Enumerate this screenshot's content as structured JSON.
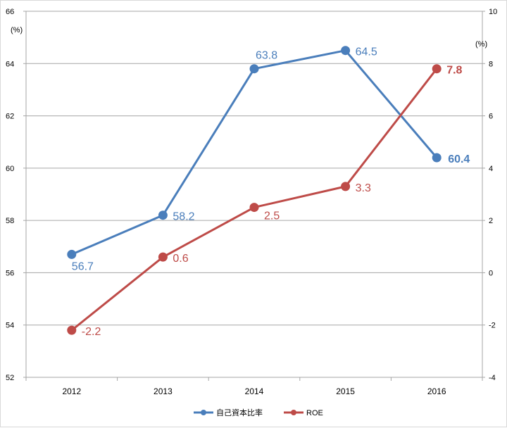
{
  "chart_data": {
    "type": "line",
    "categories": [
      "2012",
      "2013",
      "2014",
      "2015",
      "2016"
    ],
    "y_left": {
      "unit": "(%)",
      "min": 52,
      "max": 66,
      "ticks": [
        52,
        54,
        56,
        58,
        60,
        62,
        64,
        66
      ]
    },
    "y_right": {
      "unit": "(%)",
      "min": -4,
      "max": 10,
      "ticks": [
        -4,
        -2,
        0,
        2,
        4,
        6,
        8,
        10
      ]
    },
    "grid": true,
    "legend_position": "bottom",
    "series": [
      {
        "name": "自己資本比率",
        "axis": "left",
        "color": "#4a7ebb",
        "values": [
          56.7,
          58.2,
          63.8,
          64.5,
          60.4
        ],
        "labels": [
          "56.7",
          "58.2",
          "63.8",
          "64.5",
          "60.4"
        ],
        "last_label_bold": true
      },
      {
        "name": "ROE",
        "axis": "right",
        "color": "#be4b48",
        "values": [
          -2.2,
          0.6,
          2.5,
          3.3,
          7.8
        ],
        "labels": [
          "-2.2",
          "0.6",
          "2.5",
          "3.3",
          "7.8"
        ],
        "last_label_bold": true
      }
    ]
  },
  "colors": {
    "right_negative_tick": "#c00000"
  }
}
